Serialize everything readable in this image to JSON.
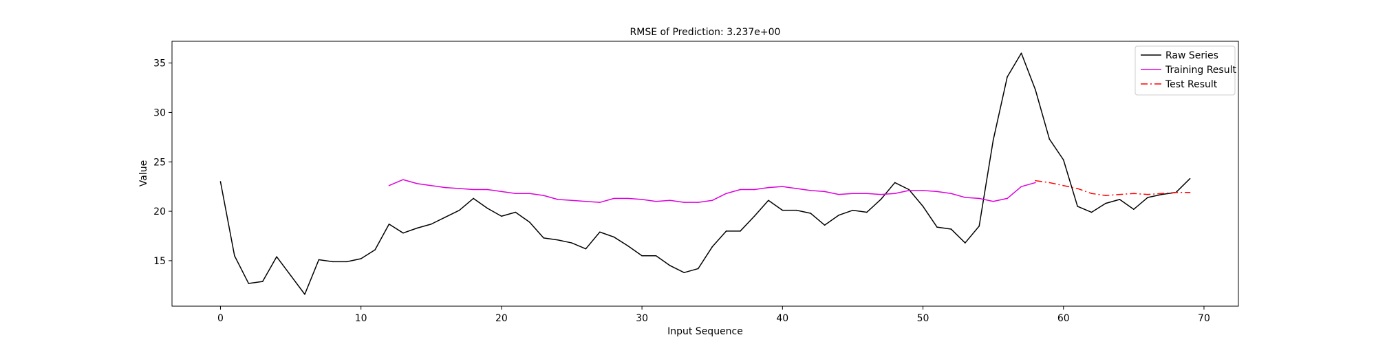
{
  "chart_data": {
    "type": "line",
    "title": "RMSE of Prediction: 3.237e+00",
    "xlabel": "Input Sequence",
    "ylabel": "Value",
    "xlim": [
      -3.45,
      72.45
    ],
    "ylim": [
      10.4,
      37.2
    ],
    "xticks": [
      0,
      10,
      20,
      30,
      40,
      50,
      60,
      70
    ],
    "yticks": [
      15,
      20,
      25,
      30,
      35
    ],
    "grid": false,
    "legend_position": "top-right",
    "series": [
      {
        "name": "Raw Series",
        "color": "#000000",
        "dash": "solid",
        "x_start": 0,
        "values": [
          23.0,
          15.5,
          12.7,
          12.9,
          15.4,
          13.5,
          11.6,
          15.1,
          14.9,
          14.9,
          15.2,
          16.1,
          18.7,
          17.8,
          18.3,
          18.7,
          19.4,
          20.1,
          21.3,
          20.3,
          19.5,
          19.9,
          18.9,
          17.3,
          17.1,
          16.8,
          16.2,
          17.9,
          17.4,
          16.5,
          15.5,
          15.5,
          14.5,
          13.8,
          14.2,
          16.4,
          18.0,
          18.0,
          19.5,
          21.1,
          20.1,
          20.1,
          19.8,
          18.6,
          19.6,
          20.1,
          19.9,
          21.2,
          22.9,
          22.2,
          20.5,
          18.4,
          18.2,
          16.8,
          18.5,
          27.2,
          33.6,
          36.0,
          32.3,
          27.3,
          25.2,
          20.5,
          19.9,
          20.8,
          21.2,
          20.2,
          21.4,
          21.7,
          21.9,
          23.3
        ]
      },
      {
        "name": "Training Result",
        "color": "#dd00dd",
        "dash": "solid",
        "x_start": 12,
        "values": [
          22.6,
          23.2,
          22.8,
          22.6,
          22.4,
          22.3,
          22.2,
          22.2,
          22.0,
          21.8,
          21.8,
          21.6,
          21.2,
          21.1,
          21.0,
          20.9,
          21.3,
          21.3,
          21.2,
          21.0,
          21.1,
          20.9,
          20.9,
          21.1,
          21.8,
          22.2,
          22.2,
          22.4,
          22.5,
          22.3,
          22.1,
          22.0,
          21.7,
          21.8,
          21.8,
          21.7,
          21.8,
          22.1,
          22.1,
          22.0,
          21.8,
          21.4,
          21.3,
          21.0,
          21.3,
          22.5,
          22.9
        ]
      },
      {
        "name": "Test Result",
        "color": "#ff0000",
        "dash": "dashdot",
        "x_start": 58,
        "values": [
          23.1,
          22.9,
          22.6,
          22.3,
          21.8,
          21.6,
          21.7,
          21.8,
          21.7,
          21.8,
          21.9,
          21.9
        ]
      }
    ]
  }
}
